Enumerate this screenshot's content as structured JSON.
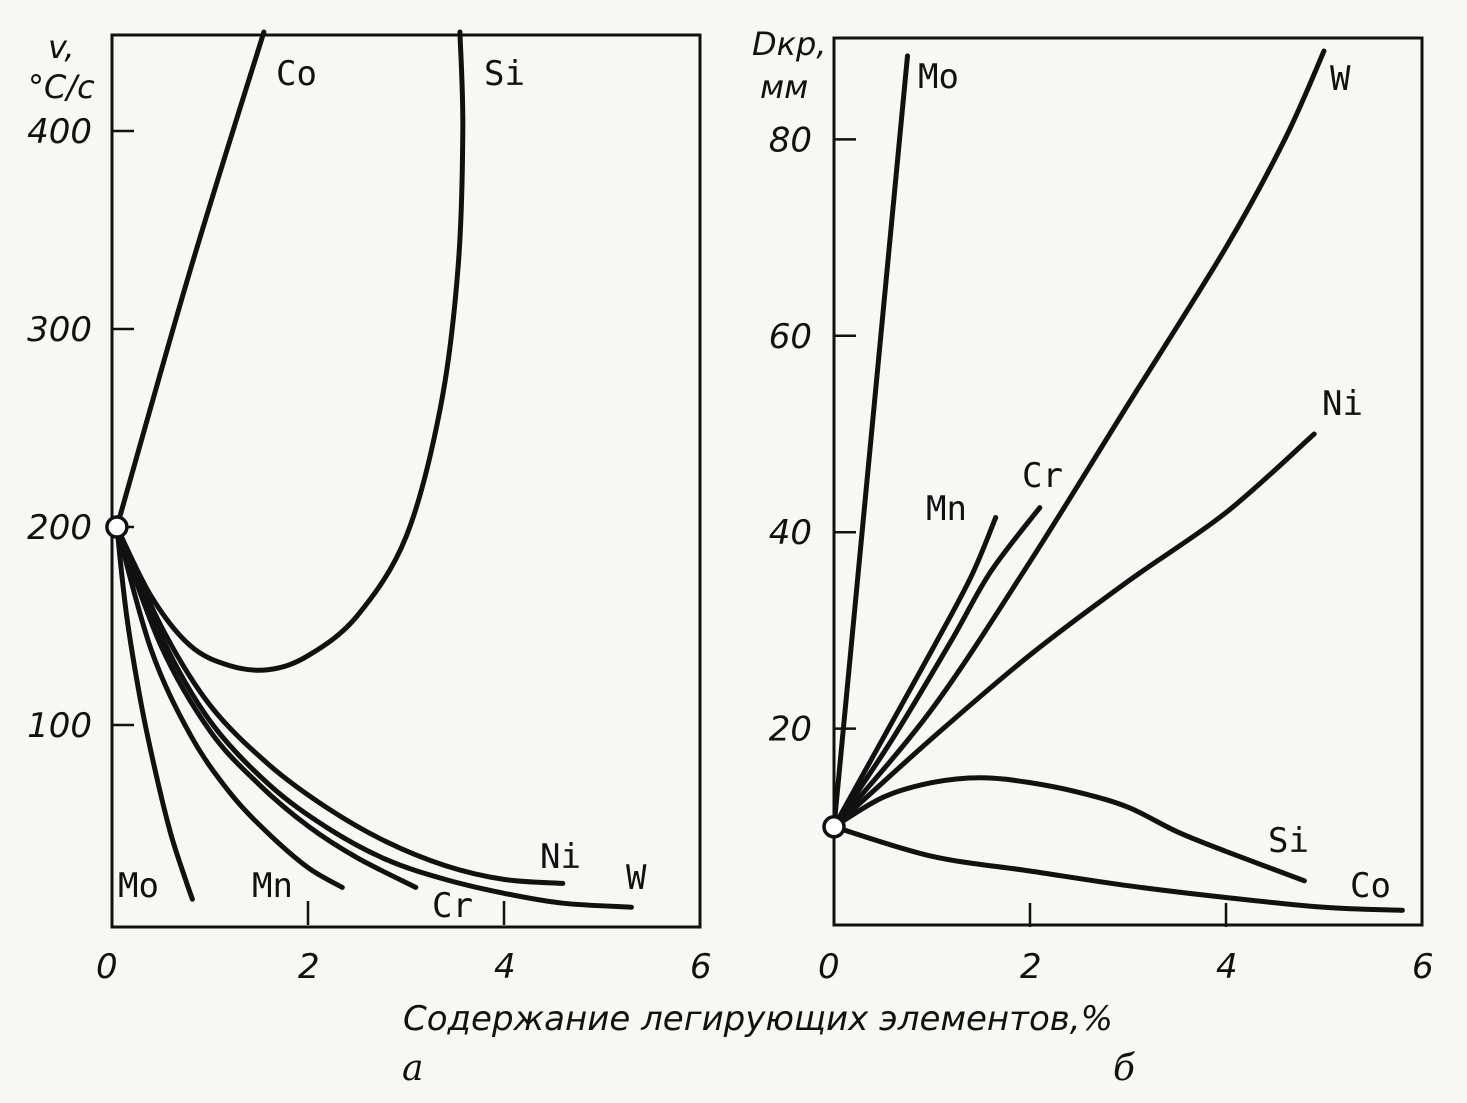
{
  "caption": "Содержание легирующих элементов,%",
  "chart_data": [
    {
      "type": "line",
      "panel_label": "а",
      "ylabel_line1": "v,",
      "ylabel_line2": "°C/c",
      "xlim": [
        0,
        6
      ],
      "ylim": [
        0,
        450
      ],
      "x_ticks": [
        "0",
        "2",
        "4",
        "6"
      ],
      "y_ticks": [
        "100",
        "200",
        "300",
        "400"
      ],
      "x_tick_values": [
        0,
        2,
        4,
        6
      ],
      "y_tick_values": [
        100,
        200,
        300,
        400
      ],
      "origin": [
        0.05,
        200
      ],
      "series": [
        {
          "name": "Co",
          "points": [
            [
              0.05,
              200
            ],
            [
              0.8,
              330
            ],
            [
              1.55,
              450
            ]
          ]
        },
        {
          "name": "Si",
          "points": [
            [
              0.05,
              200
            ],
            [
              0.4,
              165
            ],
            [
              0.8,
              140
            ],
            [
              1.2,
              130
            ],
            [
              1.6,
              128
            ],
            [
              2.0,
              135
            ],
            [
              2.5,
              155
            ],
            [
              3.0,
              195
            ],
            [
              3.35,
              260
            ],
            [
              3.53,
              330
            ],
            [
              3.58,
              400
            ],
            [
              3.55,
              450
            ]
          ]
        },
        {
          "name": "Ni",
          "points": [
            [
              0.05,
              200
            ],
            [
              0.5,
              150
            ],
            [
              1.0,
              110
            ],
            [
              1.6,
              80
            ],
            [
              2.2,
              58
            ],
            [
              2.8,
              41
            ],
            [
              3.4,
              29
            ],
            [
              4.0,
              22
            ],
            [
              4.6,
              20
            ]
          ]
        },
        {
          "name": "W",
          "points": [
            [
              0.05,
              200
            ],
            [
              0.5,
              145
            ],
            [
              1.0,
              102
            ],
            [
              1.6,
              70
            ],
            [
              2.2,
              48
            ],
            [
              2.8,
              32
            ],
            [
              3.4,
              22
            ],
            [
              4.0,
              15
            ],
            [
              4.6,
              10
            ],
            [
              5.3,
              8
            ]
          ]
        },
        {
          "name": "Cr",
          "points": [
            [
              0.05,
              200
            ],
            [
              0.5,
              140
            ],
            [
              1.0,
              97
            ],
            [
              1.5,
              70
            ],
            [
              2.0,
              49
            ],
            [
              2.5,
              33
            ],
            [
              3.1,
              18
            ]
          ]
        },
        {
          "name": "Mn",
          "points": [
            [
              0.05,
              200
            ],
            [
              0.4,
              138
            ],
            [
              0.8,
              95
            ],
            [
              1.2,
              66
            ],
            [
              1.6,
              45
            ],
            [
              2.0,
              28
            ],
            [
              2.35,
              18
            ]
          ]
        },
        {
          "name": "Mo",
          "points": [
            [
              0.05,
              200
            ],
            [
              0.15,
              155
            ],
            [
              0.3,
              110
            ],
            [
              0.45,
              75
            ],
            [
              0.6,
              45
            ],
            [
              0.75,
              22
            ],
            [
              0.82,
              12
            ]
          ]
        }
      ]
    },
    {
      "type": "line",
      "panel_label": "б",
      "ylabel_line1": "Dкр,",
      "ylabel_line2": "мм",
      "xlim": [
        0,
        6
      ],
      "ylim": [
        0,
        90
      ],
      "x_ticks": [
        "0",
        "2",
        "4",
        "6"
      ],
      "y_ticks": [
        "20",
        "40",
        "60",
        "80"
      ],
      "x_tick_values": [
        0,
        2,
        4,
        6
      ],
      "y_tick_values": [
        20,
        40,
        60,
        80
      ],
      "origin": [
        0.0,
        10
      ],
      "series": [
        {
          "name": "Mo",
          "points": [
            [
              0.0,
              10
            ],
            [
              0.75,
              88.5
            ]
          ]
        },
        {
          "name": "W",
          "points": [
            [
              0.0,
              10
            ],
            [
              1.0,
              22
            ],
            [
              2.0,
              37
            ],
            [
              3.0,
              53
            ],
            [
              4.0,
              69
            ],
            [
              4.6,
              80
            ],
            [
              5.0,
              89
            ]
          ]
        },
        {
          "name": "Ni",
          "points": [
            [
              0.0,
              10
            ],
            [
              1.0,
              19
            ],
            [
              2.0,
              27.5
            ],
            [
              3.0,
              35
            ],
            [
              4.0,
              42
            ],
            [
              4.9,
              50
            ]
          ]
        },
        {
          "name": "Cr",
          "points": [
            [
              0.0,
              10
            ],
            [
              0.6,
              19
            ],
            [
              1.2,
              29
            ],
            [
              1.6,
              36
            ],
            [
              2.1,
              42.5
            ]
          ]
        },
        {
          "name": "Mn",
          "points": [
            [
              0.0,
              10
            ],
            [
              0.5,
              19
            ],
            [
              1.0,
              28
            ],
            [
              1.4,
              35.5
            ],
            [
              1.65,
              41.5
            ]
          ]
        },
        {
          "name": "Si",
          "points": [
            [
              0.0,
              10
            ],
            [
              0.5,
              13
            ],
            [
              1.0,
              14.5
            ],
            [
              1.5,
              15
            ],
            [
              2.0,
              14.5
            ],
            [
              2.5,
              13.5
            ],
            [
              3.0,
              12
            ],
            [
              3.5,
              9.5
            ],
            [
              4.0,
              7.5
            ],
            [
              4.8,
              4.5
            ]
          ]
        },
        {
          "name": "Co",
          "points": [
            [
              0.0,
              10
            ],
            [
              1.0,
              7
            ],
            [
              2.0,
              5.5
            ],
            [
              3.0,
              4
            ],
            [
              4.0,
              2.8
            ],
            [
              5.0,
              1.8
            ],
            [
              5.8,
              1.5
            ]
          ]
        }
      ]
    }
  ]
}
